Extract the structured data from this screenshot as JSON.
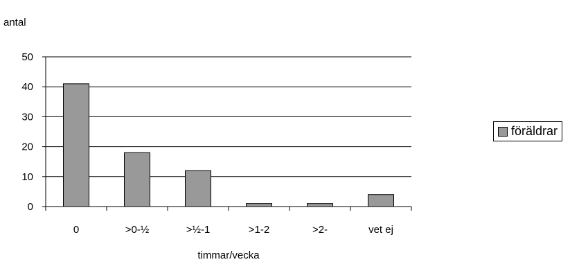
{
  "chart_data": {
    "type": "bar",
    "title": "",
    "ylabel": "antal",
    "xlabel": "timmar/vecka",
    "categories": [
      "0",
      ">0-½",
      ">½-1",
      ">1-2",
      ">2-",
      "vet ej"
    ],
    "series": [
      {
        "name": "föräldrar",
        "values": [
          41,
          18,
          12,
          1,
          1,
          4
        ],
        "color": "#999999"
      }
    ],
    "ylim": [
      0,
      50
    ],
    "yticks": [
      0,
      10,
      20,
      30,
      40,
      50
    ],
    "grid": true,
    "legend_position": "right"
  }
}
